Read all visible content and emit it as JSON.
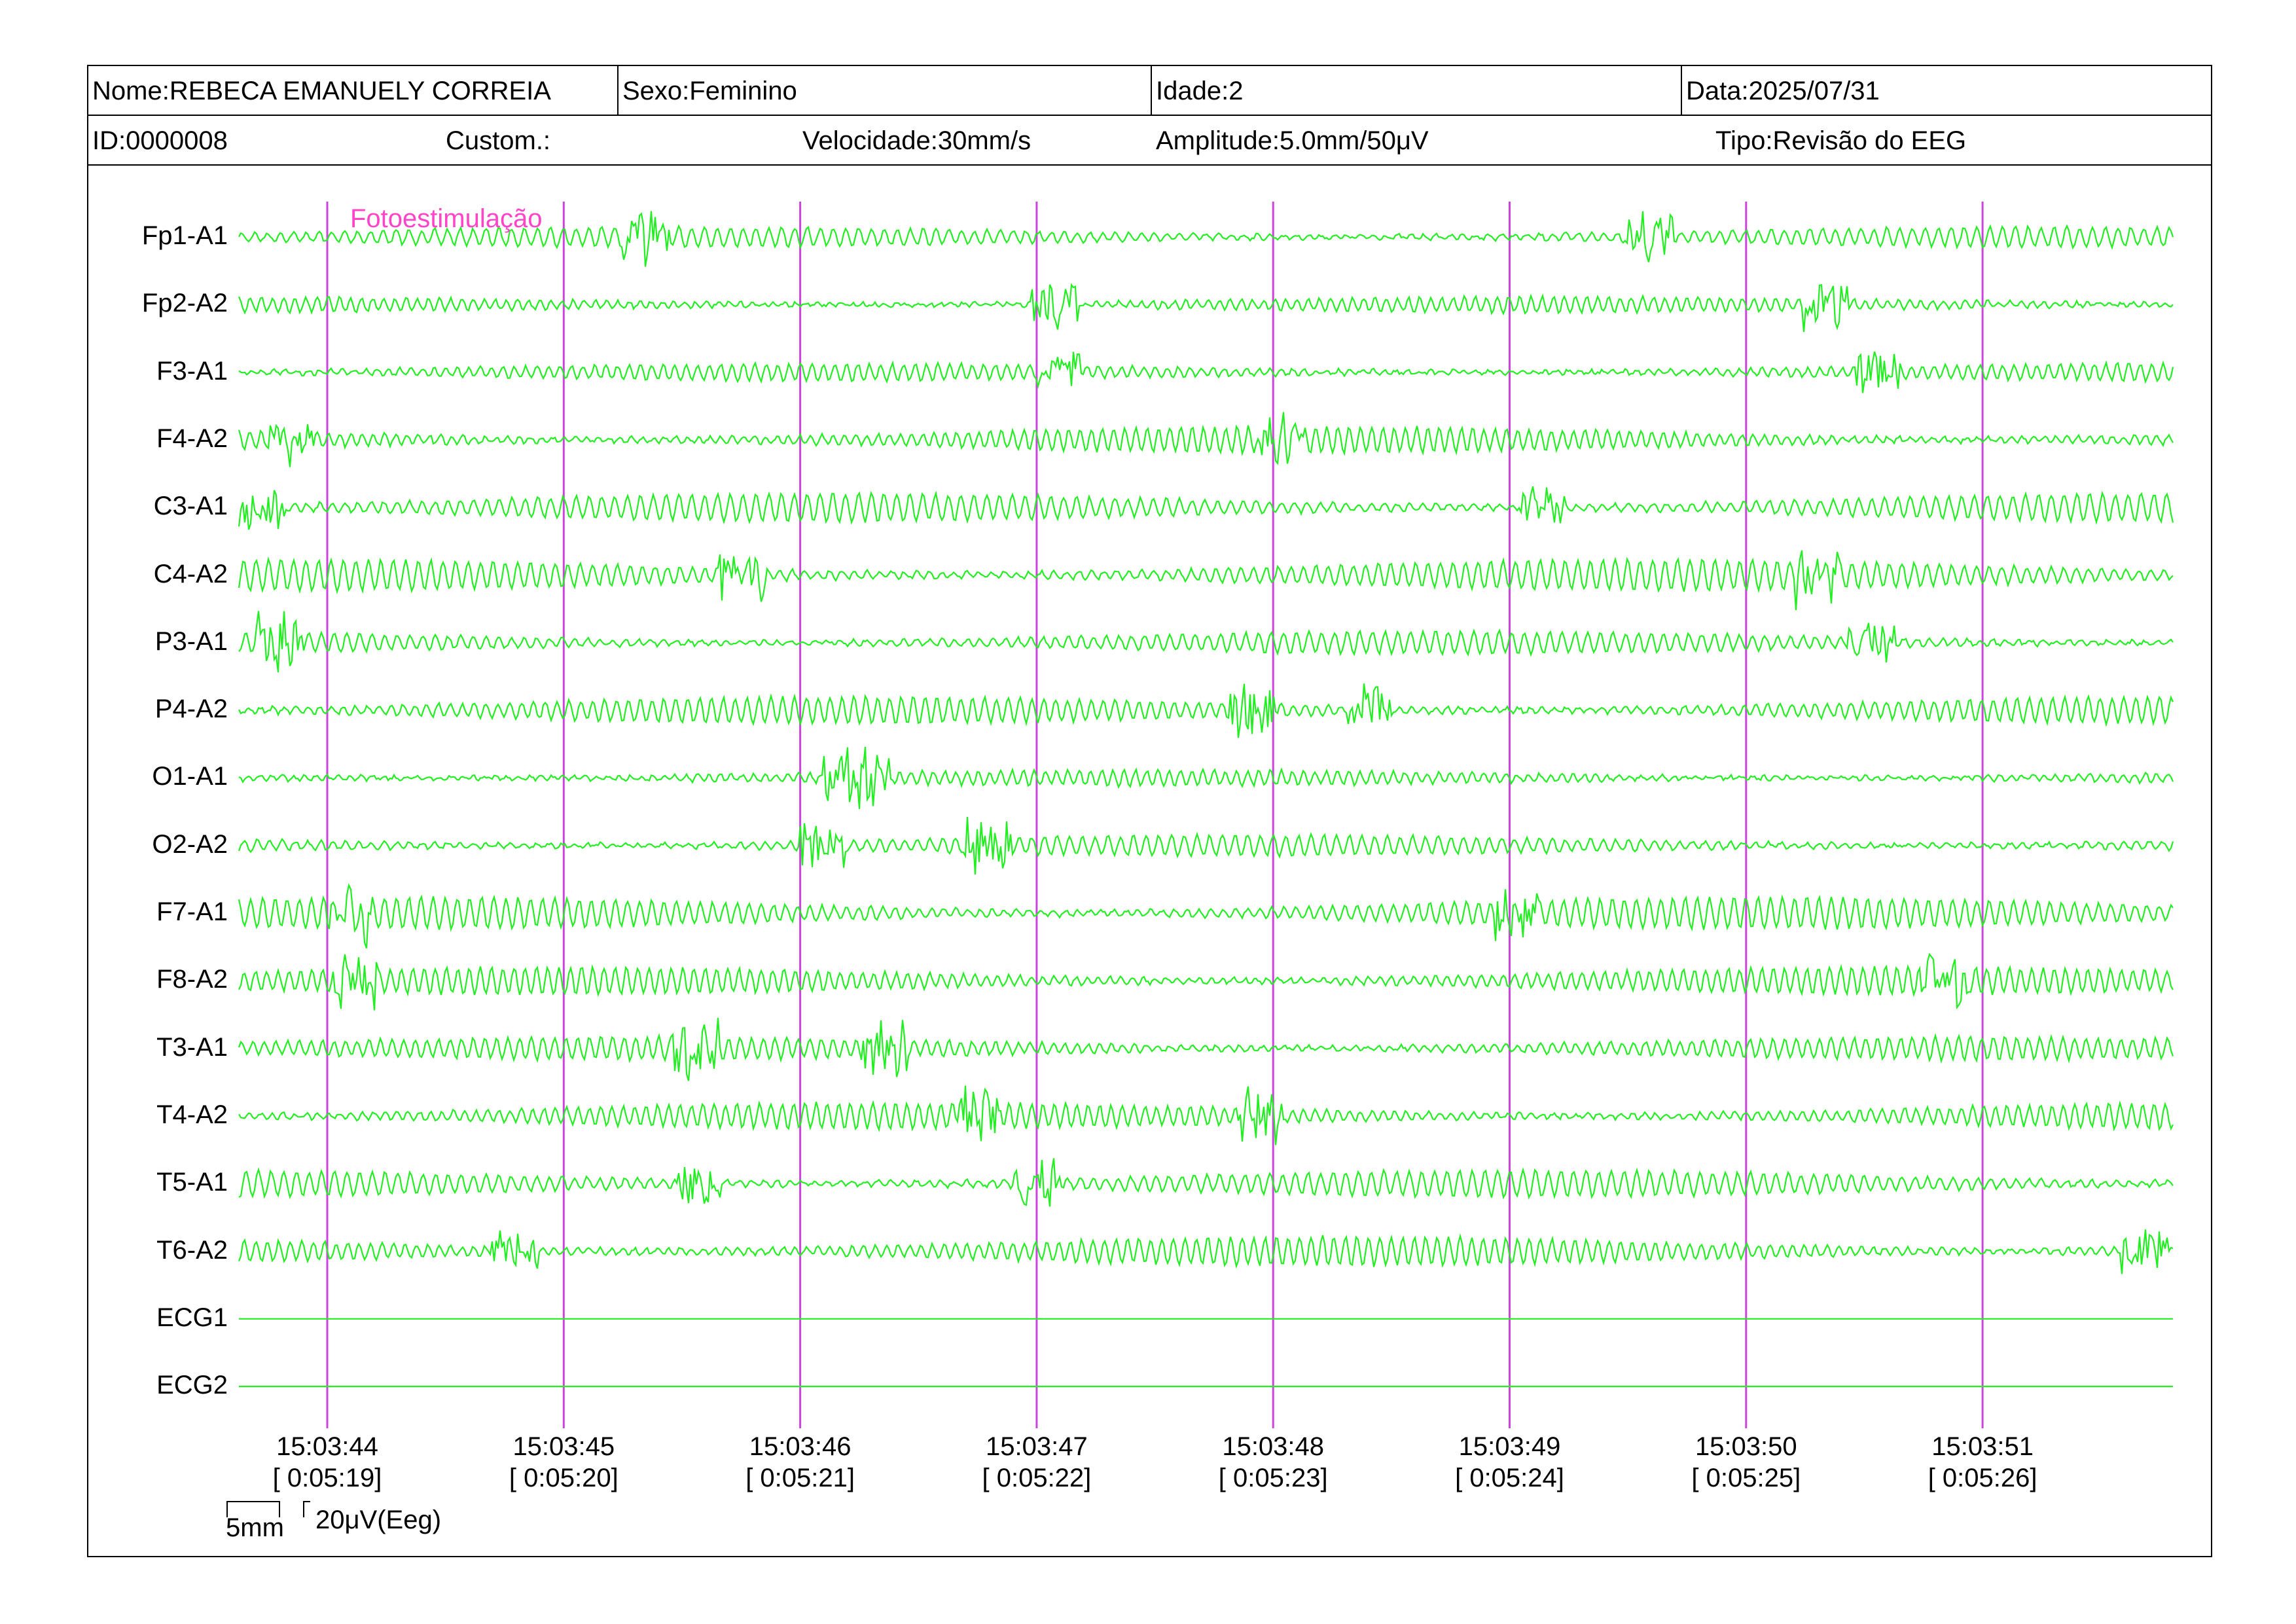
{
  "header": {
    "nome": "Nome:REBECA EMANUELY CORREIA",
    "sexo": "Sexo:Feminino",
    "idade": "Idade:2",
    "data": "Data:2025/07/31",
    "id": "ID:0000008",
    "custom": "Custom.:",
    "velocidade": "Velocidade:30mm/s",
    "amplitude": "Amplitude:5.0mm/50μV",
    "tipo": "Tipo:Revisão do EEG"
  },
  "annotation": {
    "text": "Fotoestimulação",
    "color": "#ff44c8"
  },
  "channels": [
    {
      "label": "Fp1-A1",
      "type": "eeg"
    },
    {
      "label": "Fp2-A2",
      "type": "eeg"
    },
    {
      "label": "F3-A1",
      "type": "eeg"
    },
    {
      "label": "F4-A2",
      "type": "eeg"
    },
    {
      "label": "C3-A1",
      "type": "eeg"
    },
    {
      "label": "C4-A2",
      "type": "eeg"
    },
    {
      "label": "P3-A1",
      "type": "eeg"
    },
    {
      "label": "P4-A2",
      "type": "eeg"
    },
    {
      "label": "O1-A1",
      "type": "eeg"
    },
    {
      "label": "O2-A2",
      "type": "eeg"
    },
    {
      "label": "F7-A1",
      "type": "eeg"
    },
    {
      "label": "F8-A2",
      "type": "eeg"
    },
    {
      "label": "T3-A1",
      "type": "eeg"
    },
    {
      "label": "T4-A2",
      "type": "eeg"
    },
    {
      "label": "T5-A1",
      "type": "eeg"
    },
    {
      "label": "T6-A2",
      "type": "eeg"
    },
    {
      "label": "ECG1",
      "type": "flat"
    },
    {
      "label": "ECG2",
      "type": "flat"
    }
  ],
  "time_marks": [
    {
      "time": "15:03:44",
      "elapsed": "[ 0:05:19]"
    },
    {
      "time": "15:03:45",
      "elapsed": "[ 0:05:20]"
    },
    {
      "time": "15:03:46",
      "elapsed": "[ 0:05:21]"
    },
    {
      "time": "15:03:47",
      "elapsed": "[ 0:05:22]"
    },
    {
      "time": "15:03:48",
      "elapsed": "[ 0:05:23]"
    },
    {
      "time": "15:03:49",
      "elapsed": "[ 0:05:24]"
    },
    {
      "time": "15:03:50",
      "elapsed": "[ 0:05:25]"
    },
    {
      "time": "15:03:51",
      "elapsed": "[ 0:05:26]"
    }
  ],
  "scale": {
    "time": "5mm",
    "amplitude": "20μV(Eeg)"
  },
  "colors": {
    "trace": "#22ee22",
    "marker": "#cc44dd",
    "annotation": "#ff44c8"
  }
}
